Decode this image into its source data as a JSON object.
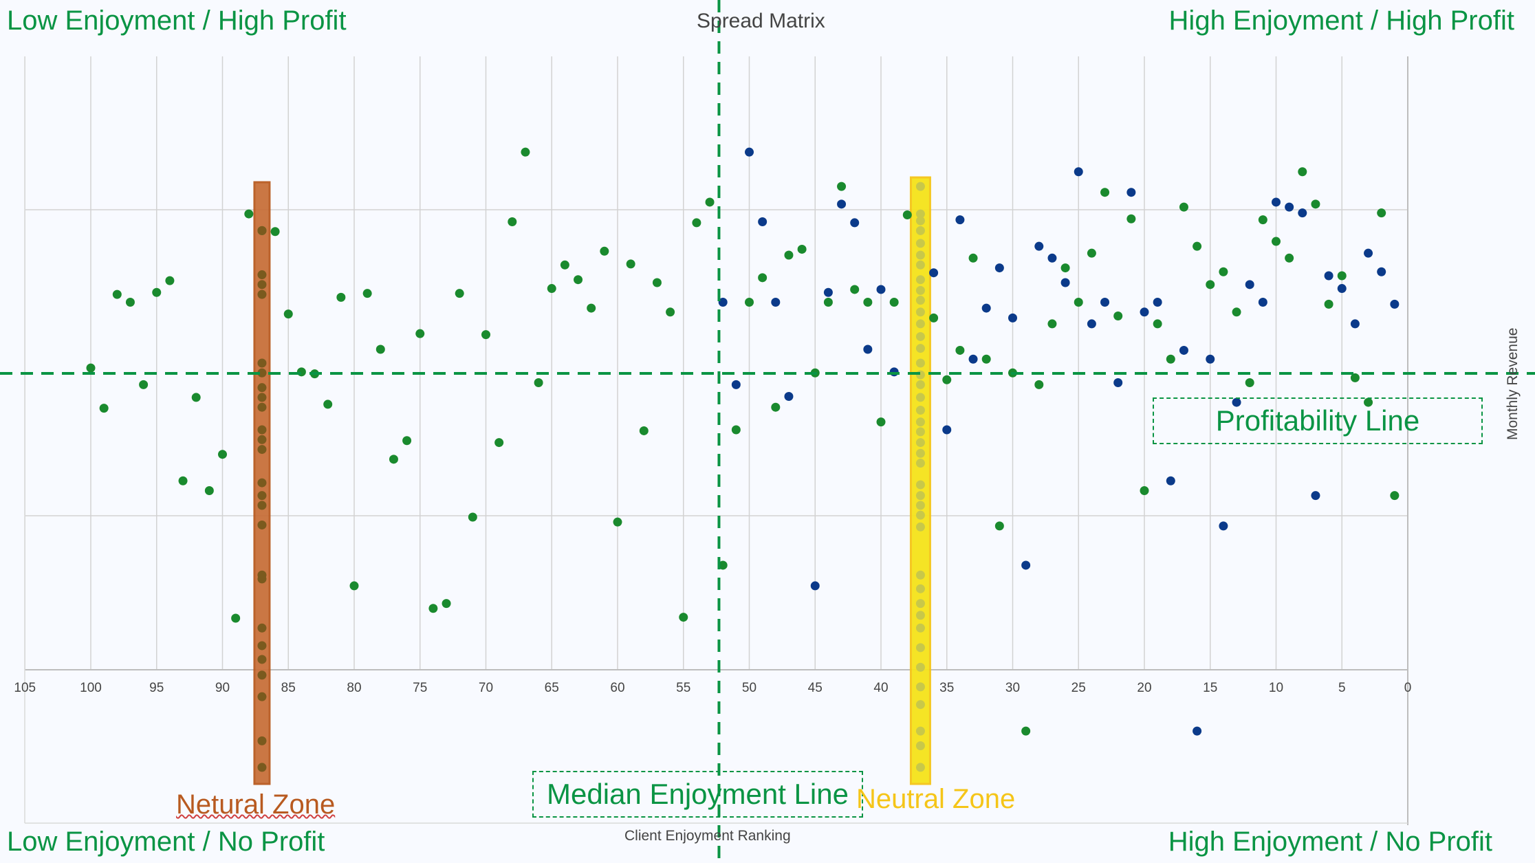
{
  "chart_data": {
    "type": "scatter",
    "title": "Spread Matrix",
    "xlabel": "Client Enjoyment Ranking",
    "ylabel": "Monthly Revenue",
    "xlim": [
      105,
      0
    ],
    "x_ticks": [
      105,
      100,
      95,
      90,
      85,
      80,
      75,
      70,
      65,
      60,
      55,
      50,
      45,
      40,
      35,
      30,
      25,
      20,
      15,
      10,
      5,
      0
    ],
    "grid": true,
    "colors": {
      "green": "#1a8a2e",
      "blue": "#0b3a8a",
      "accent": "#0a9444"
    },
    "quadrants": {
      "top_left": "Low Enjoyment / High Profit",
      "top_right": "High Enjoyment / High Profit",
      "bottom_left": "Low Enjoyment / No Profit",
      "bottom_right": "High Enjoyment / No Profit"
    },
    "reference_lines": {
      "median_enjoyment": {
        "label": "Median Enjoyment Line",
        "x": 52.3
      },
      "profitability": {
        "label": "Profitability Line",
        "y": 381
      }
    },
    "zones": [
      {
        "label": "Netural Zone",
        "x": 87,
        "color": "#c8703a"
      },
      {
        "label": "Neutral Zone",
        "x": 37,
        "color": "#f5e31a"
      }
    ],
    "series": [
      {
        "color": "green",
        "points": [
          [
            100,
            375
          ],
          [
            99,
            416
          ],
          [
            98,
            300
          ],
          [
            97,
            308
          ],
          [
            96,
            392
          ],
          [
            95,
            298
          ],
          [
            94,
            286
          ],
          [
            93,
            490
          ],
          [
            92,
            405
          ],
          [
            91,
            500
          ],
          [
            90,
            463
          ],
          [
            89,
            630
          ],
          [
            88,
            218
          ],
          [
            87,
            235
          ],
          [
            86,
            236
          ],
          [
            85,
            320
          ],
          [
            84,
            379
          ],
          [
            83,
            381
          ],
          [
            82,
            412
          ],
          [
            81,
            303
          ],
          [
            80,
            597
          ],
          [
            79,
            299
          ],
          [
            78,
            356
          ],
          [
            77,
            468
          ],
          [
            76,
            449
          ],
          [
            75,
            340
          ],
          [
            74,
            620
          ],
          [
            73,
            615
          ],
          [
            72,
            299
          ],
          [
            71,
            527
          ],
          [
            70,
            341
          ],
          [
            69,
            451
          ],
          [
            68,
            226
          ],
          [
            67,
            155
          ],
          [
            66,
            390
          ],
          [
            65,
            294
          ],
          [
            64,
            270
          ],
          [
            63,
            285
          ],
          [
            62,
            314
          ],
          [
            61,
            256
          ],
          [
            60,
            532
          ],
          [
            59,
            269
          ],
          [
            58,
            439
          ],
          [
            57,
            288
          ],
          [
            56,
            318
          ],
          [
            55,
            629
          ],
          [
            54,
            227
          ],
          [
            53,
            206
          ],
          [
            52,
            576
          ],
          [
            51,
            438
          ],
          [
            50,
            308
          ],
          [
            49,
            283
          ],
          [
            48,
            415
          ],
          [
            47,
            260
          ],
          [
            46,
            254
          ],
          [
            45,
            380
          ],
          [
            44,
            308
          ],
          [
            43,
            190
          ],
          [
            42,
            295
          ],
          [
            41,
            308
          ],
          [
            40,
            430
          ],
          [
            39,
            308
          ],
          [
            38,
            219
          ],
          [
            36,
            324
          ],
          [
            35,
            387
          ],
          [
            34,
            357
          ],
          [
            33,
            263
          ],
          [
            32,
            366
          ],
          [
            31,
            536
          ],
          [
            30,
            380
          ],
          [
            29,
            745
          ],
          [
            28,
            392
          ],
          [
            27,
            330
          ],
          [
            26,
            273
          ],
          [
            25,
            308
          ],
          [
            24,
            258
          ],
          [
            23,
            196
          ],
          [
            22,
            322
          ],
          [
            21,
            223
          ],
          [
            20,
            500
          ],
          [
            19,
            330
          ],
          [
            18,
            366
          ],
          [
            17,
            211
          ],
          [
            16,
            251
          ],
          [
            15,
            290
          ],
          [
            14,
            277
          ],
          [
            13,
            318
          ],
          [
            12,
            390
          ],
          [
            11,
            224
          ],
          [
            10,
            246
          ],
          [
            9,
            263
          ],
          [
            8,
            175
          ],
          [
            7,
            208
          ],
          [
            6,
            310
          ],
          [
            5,
            281
          ],
          [
            4,
            385
          ],
          [
            3,
            410
          ],
          [
            2,
            217
          ],
          [
            1,
            505
          ]
        ]
      },
      {
        "color": "blue",
        "points": [
          [
            52,
            308
          ],
          [
            51,
            392
          ],
          [
            50,
            155
          ],
          [
            49,
            226
          ],
          [
            48,
            308
          ],
          [
            47,
            404
          ],
          [
            45,
            597
          ],
          [
            44,
            298
          ],
          [
            43,
            208
          ],
          [
            42,
            227
          ],
          [
            41,
            356
          ],
          [
            40,
            295
          ],
          [
            39,
            379
          ],
          [
            36,
            278
          ],
          [
            35,
            438
          ],
          [
            34,
            224
          ],
          [
            33,
            366
          ],
          [
            32,
            314
          ],
          [
            31,
            273
          ],
          [
            30,
            324
          ],
          [
            29,
            576
          ],
          [
            28,
            251
          ],
          [
            27,
            263
          ],
          [
            26,
            288
          ],
          [
            25,
            175
          ],
          [
            24,
            330
          ],
          [
            23,
            308
          ],
          [
            22,
            390
          ],
          [
            21,
            196
          ],
          [
            20,
            318
          ],
          [
            19,
            308
          ],
          [
            18,
            490
          ],
          [
            17,
            357
          ],
          [
            16,
            745
          ],
          [
            15,
            366
          ],
          [
            14,
            536
          ],
          [
            13,
            410
          ],
          [
            12,
            290
          ],
          [
            11,
            308
          ],
          [
            10,
            206
          ],
          [
            9,
            211
          ],
          [
            8,
            217
          ],
          [
            7,
            505
          ],
          [
            6,
            281
          ],
          [
            5,
            294
          ],
          [
            4,
            330
          ],
          [
            3,
            258
          ],
          [
            2,
            277
          ],
          [
            1,
            310
          ]
        ]
      },
      {
        "color": "zone-netural",
        "points": [
          [
            87,
            235
          ],
          [
            87,
            280
          ],
          [
            87,
            290
          ],
          [
            87,
            300
          ],
          [
            87,
            370
          ],
          [
            87,
            380
          ],
          [
            87,
            395
          ],
          [
            87,
            405
          ],
          [
            87,
            415
          ],
          [
            87,
            438
          ],
          [
            87,
            448
          ],
          [
            87,
            458
          ],
          [
            87,
            492
          ],
          [
            87,
            505
          ],
          [
            87,
            515
          ],
          [
            87,
            535
          ],
          [
            87,
            586
          ],
          [
            87,
            590
          ],
          [
            87,
            640
          ],
          [
            87,
            658
          ],
          [
            87,
            672
          ],
          [
            87,
            688
          ],
          [
            87,
            710
          ],
          [
            87,
            755
          ],
          [
            87,
            782
          ]
        ]
      },
      {
        "color": "zone-neutral",
        "points": [
          [
            37,
            190
          ],
          [
            37,
            218
          ],
          [
            37,
            225
          ],
          [
            37,
            235
          ],
          [
            37,
            248
          ],
          [
            37,
            260
          ],
          [
            37,
            270
          ],
          [
            37,
            285
          ],
          [
            37,
            296
          ],
          [
            37,
            306
          ],
          [
            37,
            318
          ],
          [
            37,
            330
          ],
          [
            37,
            343
          ],
          [
            37,
            355
          ],
          [
            37,
            370
          ],
          [
            37,
            382
          ],
          [
            37,
            392
          ],
          [
            37,
            405
          ],
          [
            37,
            418
          ],
          [
            37,
            430
          ],
          [
            37,
            440
          ],
          [
            37,
            451
          ],
          [
            37,
            462
          ],
          [
            37,
            472
          ],
          [
            37,
            494
          ],
          [
            37,
            505
          ],
          [
            37,
            515
          ],
          [
            37,
            525
          ],
          [
            37,
            537
          ],
          [
            37,
            586
          ],
          [
            37,
            600
          ],
          [
            37,
            615
          ],
          [
            37,
            627
          ],
          [
            37,
            640
          ],
          [
            37,
            660
          ],
          [
            37,
            680
          ],
          [
            37,
            700
          ],
          [
            37,
            718
          ],
          [
            37,
            745
          ],
          [
            37,
            760
          ],
          [
            37,
            782
          ]
        ]
      }
    ]
  }
}
